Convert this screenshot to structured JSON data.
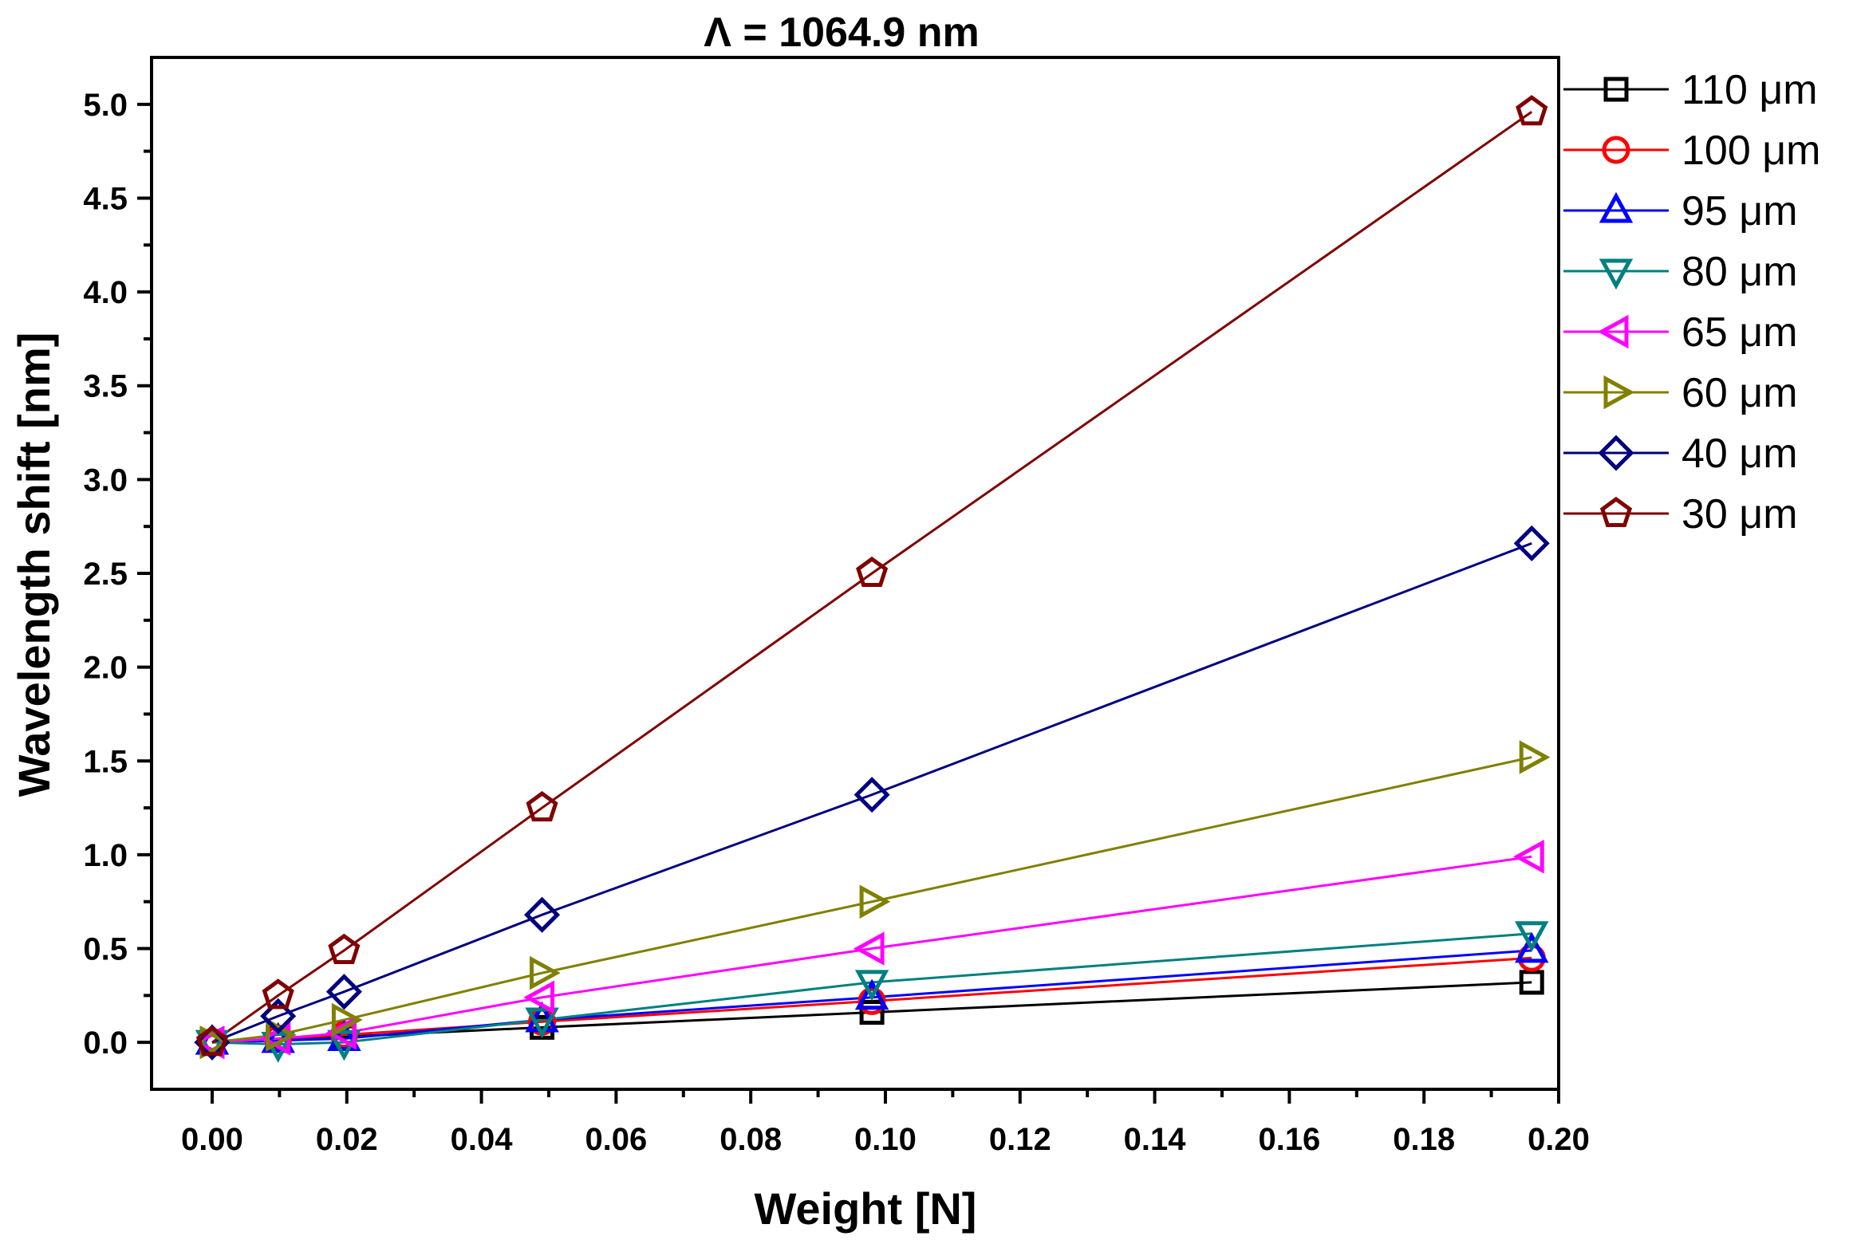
{
  "chart_data": {
    "type": "line",
    "title": "Λ = 1064.9 nm",
    "xlabel": "Weight [N]",
    "ylabel": "Wavelength shift [nm]",
    "xlim": [
      -0.009,
      0.2
    ],
    "ylim": [
      -0.25,
      5.25
    ],
    "xticks": [
      0.0,
      0.02,
      0.04,
      0.06,
      0.08,
      0.1,
      0.12,
      0.14,
      0.16,
      0.18,
      0.2
    ],
    "xtick_labels": [
      "0.00",
      "0.02",
      "0.04",
      "0.06",
      "0.08",
      "0.10",
      "0.12",
      "0.14",
      "0.16",
      "0.18",
      "0.20"
    ],
    "yticks": [
      0.0,
      0.5,
      1.0,
      1.5,
      2.0,
      2.5,
      3.0,
      3.5,
      4.0,
      4.5,
      5.0
    ],
    "ytick_labels": [
      "0.0",
      "0.5",
      "1.0",
      "1.5",
      "2.0",
      "2.5",
      "3.0",
      "3.5",
      "4.0",
      "4.5",
      "5.0"
    ],
    "x": [
      0.0,
      0.0098,
      0.0196,
      0.049,
      0.098,
      0.196
    ],
    "legend_position": "outside-right",
    "series": [
      {
        "name": "110 μm",
        "color": "#000000",
        "marker": "square",
        "values": [
          0.0,
          0.02,
          0.03,
          0.08,
          0.16,
          0.32
        ]
      },
      {
        "name": "100 μm",
        "color": "#ff0000",
        "marker": "circle",
        "values": [
          0.0,
          0.02,
          0.04,
          0.11,
          0.22,
          0.45
        ]
      },
      {
        "name": "95 μm",
        "color": "#0000ff",
        "marker": "triangle-up",
        "values": [
          0.0,
          0.01,
          0.02,
          0.12,
          0.24,
          0.49
        ]
      },
      {
        "name": "80 μm",
        "color": "#008080",
        "marker": "triangle-down",
        "values": [
          0.0,
          -0.01,
          0.0,
          0.12,
          0.32,
          0.58
        ]
      },
      {
        "name": "65 μm",
        "color": "#ff00ff",
        "marker": "triangle-left",
        "values": [
          0.0,
          0.02,
          0.05,
          0.24,
          0.5,
          0.99
        ]
      },
      {
        "name": "60 μm",
        "color": "#808000",
        "marker": "triangle-right",
        "values": [
          0.0,
          0.04,
          0.12,
          0.37,
          0.75,
          1.52
        ]
      },
      {
        "name": "40 μm",
        "color": "#000080",
        "marker": "diamond",
        "values": [
          0.0,
          0.14,
          0.27,
          0.68,
          1.32,
          2.66
        ]
      },
      {
        "name": "30 μm",
        "color": "#800000",
        "marker": "pentagon",
        "values": [
          0.0,
          0.25,
          0.49,
          1.25,
          2.5,
          4.96
        ]
      }
    ]
  }
}
